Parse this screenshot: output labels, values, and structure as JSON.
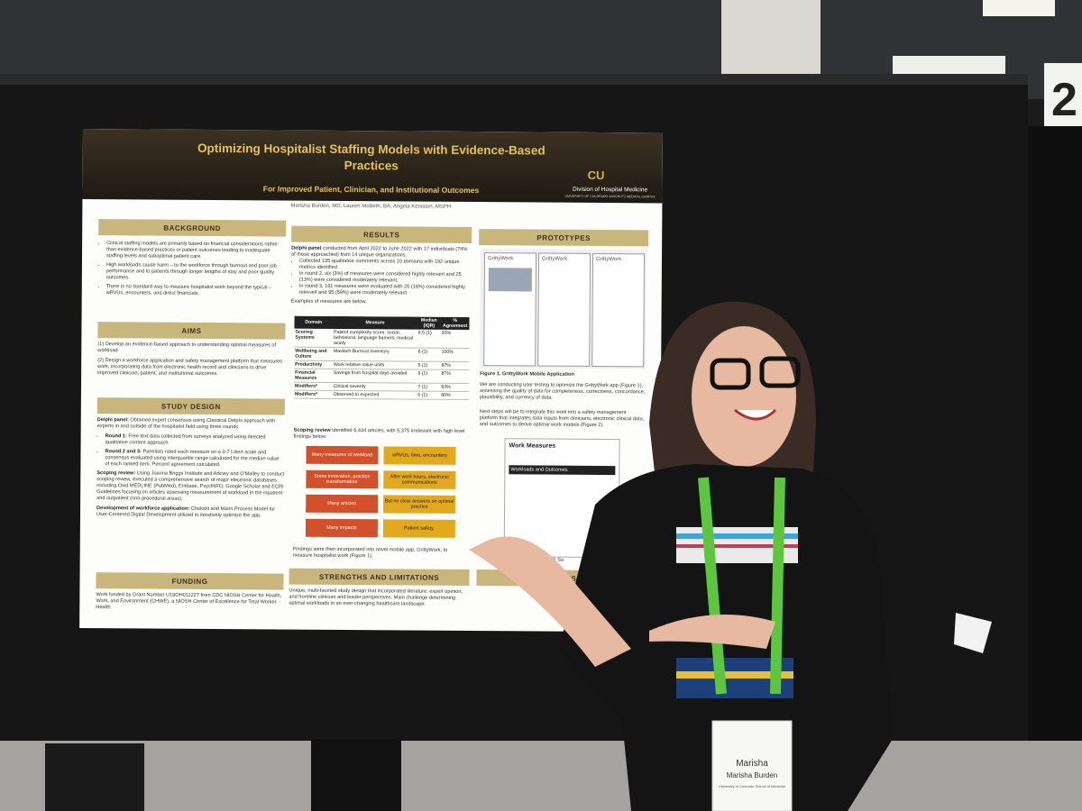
{
  "poster": {
    "title": "Optimizing Hospitalist Staffing Models with Evidence-Based Practices",
    "subtitle": "For Improved Patient, Clinician, and Institutional Outcomes",
    "authors": "Marisha Burden, MD, Lauren McBeth, BA, Angela Keniston, MSPH",
    "affiliation": "Division of Hospital Medicine",
    "institution": "UNIVERSITY OF COLORADO ANSCHUTZ MEDICAL CAMPUS",
    "background": {
      "heading": "BACKGROUND",
      "items": [
        "Clinical staffing models are primarily based on financial considerations rather than evidence-based practices or patient outcomes leading to inadequate staffing levels and suboptimal patient care.",
        "High workloads cause harm – to the workforce through burnout and poor job performance and to patients through longer lengths of stay and poor quality outcomes.",
        "There is no standard way to measure hospitalist work beyond the typical – wRVUs, encounters, and direct financials."
      ]
    },
    "aims": {
      "heading": "AIMS",
      "items": [
        "(1) Develop an evidence-based approach to understanding optimal measures of workload",
        "(2) Design a workforce application and safety management platform that measures work, incorporating data from electronic health record and clinicians to drive improved clinician, patient, and institutional outcomes."
      ]
    },
    "study_design": {
      "heading": "STUDY DESIGN",
      "delphi_lead": "Delphi panel:",
      "delphi": "Obtained expert consensus using Classical Delphi approach with experts in and outside of the hospitalist field using three rounds",
      "rounds": [
        {
          "lead": "Round 1:",
          "text": "Free text data collected from surveys analyzed using directed qualitative content approach"
        },
        {
          "lead": "Round 2 and 3:",
          "text": "Panelists rated each measure on a 0-7 Likert scale and consensus evaluated using interquartile range calculated for the median value of each ranked item. Percent agreement calculated."
        }
      ],
      "scoping_lead": "Scoping review:",
      "scoping": "Using Joanna Briggs Institute and Arksey and O'Malley to conduct scoping review, executed a comprehensive search of major electronic databases including Ovid MEDLINE (PubMed), Embase, PsycINFO, Google Scholar and ECRI Guidelines focusing on articles assessing measurement of workload in the inpatient and outpatient (non-procedural areas).",
      "app_lead": "Development of workforce application:",
      "app": "Chokshi and Mann Process Model for User-Centered Digital Development utilized to iteratively optimize the app."
    },
    "funding": {
      "heading": "FUNDING",
      "text": "Work funded by Grant Number U19OH011227 from CDC NIOSH Center for Health, Work, and Environment (CHWE), a NIOSH Center of Excellence for Total Worker Health"
    },
    "results": {
      "heading": "RESULTS",
      "intro_lead": "Delphi panel",
      "intro": "conducted from April 2022 to June 2022 with 17 individuals (74% of those approached) from 14 unique organizations.",
      "items": [
        "Collected 135 qualitative comments across 10 domains with 192 unique metrics identified",
        "In round 2, six (3%) of measures were considered highly relevant and 25 (13%) were considered moderately relevant.",
        "In round 3, 161 measures were evaluated with 25 (16%) considered highly relevant and 95 (59%) were moderately relevant"
      ],
      "examples": "Examples of measures are below.",
      "table": {
        "header": [
          "Domain",
          "Measure",
          "Median (IQR)",
          "% Agreement"
        ],
        "rows": [
          [
            "Scoring Systems",
            "Patient complexity score: social, behavioral, language barriers, medical acuity",
            "6.5 (1)",
            "93%"
          ],
          [
            "Wellbeing and Culture",
            "Maslach Burnout Inventory",
            "6 (1)",
            "100%"
          ],
          [
            "Productivity",
            "Work relative value units",
            "6 (1)",
            "87%"
          ],
          [
            "Financial Measures",
            "Savings from hospital days avoided",
            "6 (1)",
            "87%"
          ],
          [
            "Modifiers*",
            "Clinical severity",
            "7 (1)",
            "93%"
          ],
          [
            "Modifiers*",
            "Observed to expected",
            "6 (1)",
            "80%"
          ]
        ]
      },
      "scoping_lead": "Scoping review",
      "scoping": "identified 6,434 articles, with 5,375 irrelevant with high level findings below:",
      "flow": [
        [
          "Many measures of workload",
          "wRVUs, time, encounters"
        ],
        [
          "Some innovation, practice transformation",
          "After work hours, electronic communications"
        ],
        [
          "Many articles",
          "But no clear answers on optimal practice"
        ],
        [
          "Many impacts",
          "Patient safety,"
        ]
      ],
      "findings": "Findings were then incorporated into novel mobile app, GrittyWork, to measure hospitalist work (Figure 1)."
    },
    "prototypes": {
      "heading": "PROTOTYPES",
      "app_name": "GrittyWork",
      "figure1": "Figure 1. GrittyWork Mobile Application",
      "text1": "We are conducting user testing to optimize the GrittyWork app (Figure 1), assessing the quality of data for completeness, correctness, concordance, plausibility, and currency of data.",
      "text2": "Next steps will be to integrate this work into a safety management platform that integrates data inputs from clinicians, electronic clinical data, and outcomes to derive optimal work models (Figure 2).",
      "dashboard_title": "Work Measures",
      "dashboard_section": "Workloads and Outcomes",
      "figure2": "Prototype of GrittyWork Sa"
    },
    "strengths": {
      "heading": "STRENGTHS AND LIMITATIONS",
      "text": "Unique, multi-faceted study design that incorporated literature, expert opinion, and frontline clinician and leader perspectives. Main challenge determining optimal workloads in an ever-changing healthcare landscape."
    },
    "conclusion": {
      "heading": "CONCLUSIO"
    }
  },
  "booth_number": "2",
  "badge": {
    "first_name": "Marisha",
    "full_name": "Marisha Burden",
    "org": "University of Colorado School of Medicine"
  }
}
